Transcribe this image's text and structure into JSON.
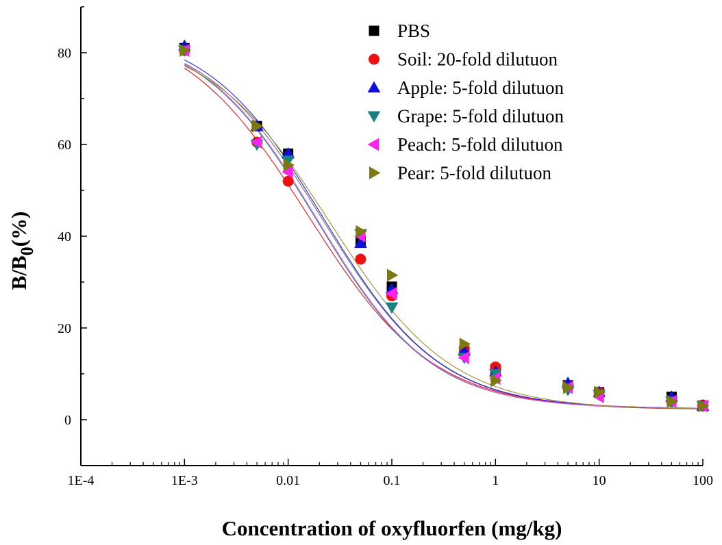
{
  "chart_data": {
    "type": "scatter",
    "x_scale": "log",
    "xlabel": "Concentration of oxyfluorfen (mg/kg)",
    "ylabel_main": "B/B",
    "ylabel_sub": "0",
    "ylabel_suffix": "(%)",
    "xlim": [
      0.0001,
      100
    ],
    "ylim": [
      -10,
      90
    ],
    "x_ticks": [
      {
        "value": 0.0001,
        "label": "1E-4"
      },
      {
        "value": 0.001,
        "label": "1E-3"
      },
      {
        "value": 0.01,
        "label": "0.01"
      },
      {
        "value": 0.1,
        "label": "0.1"
      },
      {
        "value": 1,
        "label": "1"
      },
      {
        "value": 10,
        "label": "10"
      },
      {
        "value": 100,
        "label": "100"
      }
    ],
    "y_ticks": [
      {
        "value": 0,
        "label": "0"
      },
      {
        "value": 20,
        "label": "20"
      },
      {
        "value": 40,
        "label": "40"
      },
      {
        "value": 60,
        "label": "60"
      },
      {
        "value": 80,
        "label": "80"
      }
    ],
    "legend_position": "top-right",
    "x": [
      0.001,
      0.005,
      0.01,
      0.05,
      0.1,
      0.5,
      1,
      5,
      10,
      50,
      100
    ],
    "series": [
      {
        "name": "PBS",
        "marker": "square",
        "color": "#000000",
        "line_color": "#6f6f6f",
        "values": [
          81,
          64,
          58,
          39,
          29,
          15,
          11,
          7.5,
          6,
          5,
          3
        ],
        "fit": {
          "top": 85,
          "bottom": 2.2,
          "logx0": -1.667,
          "slope": 0.76
        }
      },
      {
        "name": "Soil: 20-fold dilutuon",
        "marker": "circle",
        "color": "#ee1111",
        "line_color": "#ee1111",
        "values": [
          80.5,
          60.5,
          52,
          35,
          27,
          15.5,
          11.5,
          7.5,
          6,
          4,
          3.2
        ],
        "fit": {
          "top": 87,
          "bottom": 2.2,
          "logx0": -1.81,
          "slope": 0.72
        }
      },
      {
        "name": "Apple: 5-fold dilutuon",
        "marker": "triangle-up",
        "color": "#1010dd",
        "line_color": "#2222ee",
        "values": [
          81.5,
          64,
          58,
          38.5,
          28.5,
          15,
          10.5,
          8,
          6,
          5,
          3
        ],
        "fit": {
          "top": 85.5,
          "bottom": 2.4,
          "logx0": -1.66,
          "slope": 0.77
        }
      },
      {
        "name": "Grape: 5-fold dilutuon",
        "marker": "triangle-down",
        "color": "#1a8080",
        "line_color": "#1a8080",
        "values": [
          80.5,
          60,
          56.5,
          40.5,
          24.5,
          13.5,
          10,
          6.5,
          5.5,
          4,
          3
        ],
        "fit": {
          "top": 85,
          "bottom": 2.4,
          "logx0": -1.73,
          "slope": 0.78
        }
      },
      {
        "name": "Peach: 5-fold dilutuon",
        "marker": "triangle-left",
        "color": "#ff22ee",
        "line_color": "#ee55ee",
        "values": [
          80.5,
          60.5,
          54,
          40,
          27.5,
          13.5,
          9,
          7,
          5,
          4,
          3
        ],
        "fit": {
          "top": 85,
          "bottom": 2.4,
          "logx0": -1.72,
          "slope": 0.78
        }
      },
      {
        "name": "Pear: 5-fold dilutuon",
        "marker": "triangle-right",
        "color": "#7a7a10",
        "line_color": "#a08a30",
        "values": [
          80.5,
          64,
          55.5,
          41,
          31.5,
          16.5,
          8.5,
          7,
          6,
          4,
          3
        ],
        "fit": {
          "top": 84,
          "bottom": 2.2,
          "logx0": -1.6,
          "slope": 0.74
        }
      }
    ]
  }
}
